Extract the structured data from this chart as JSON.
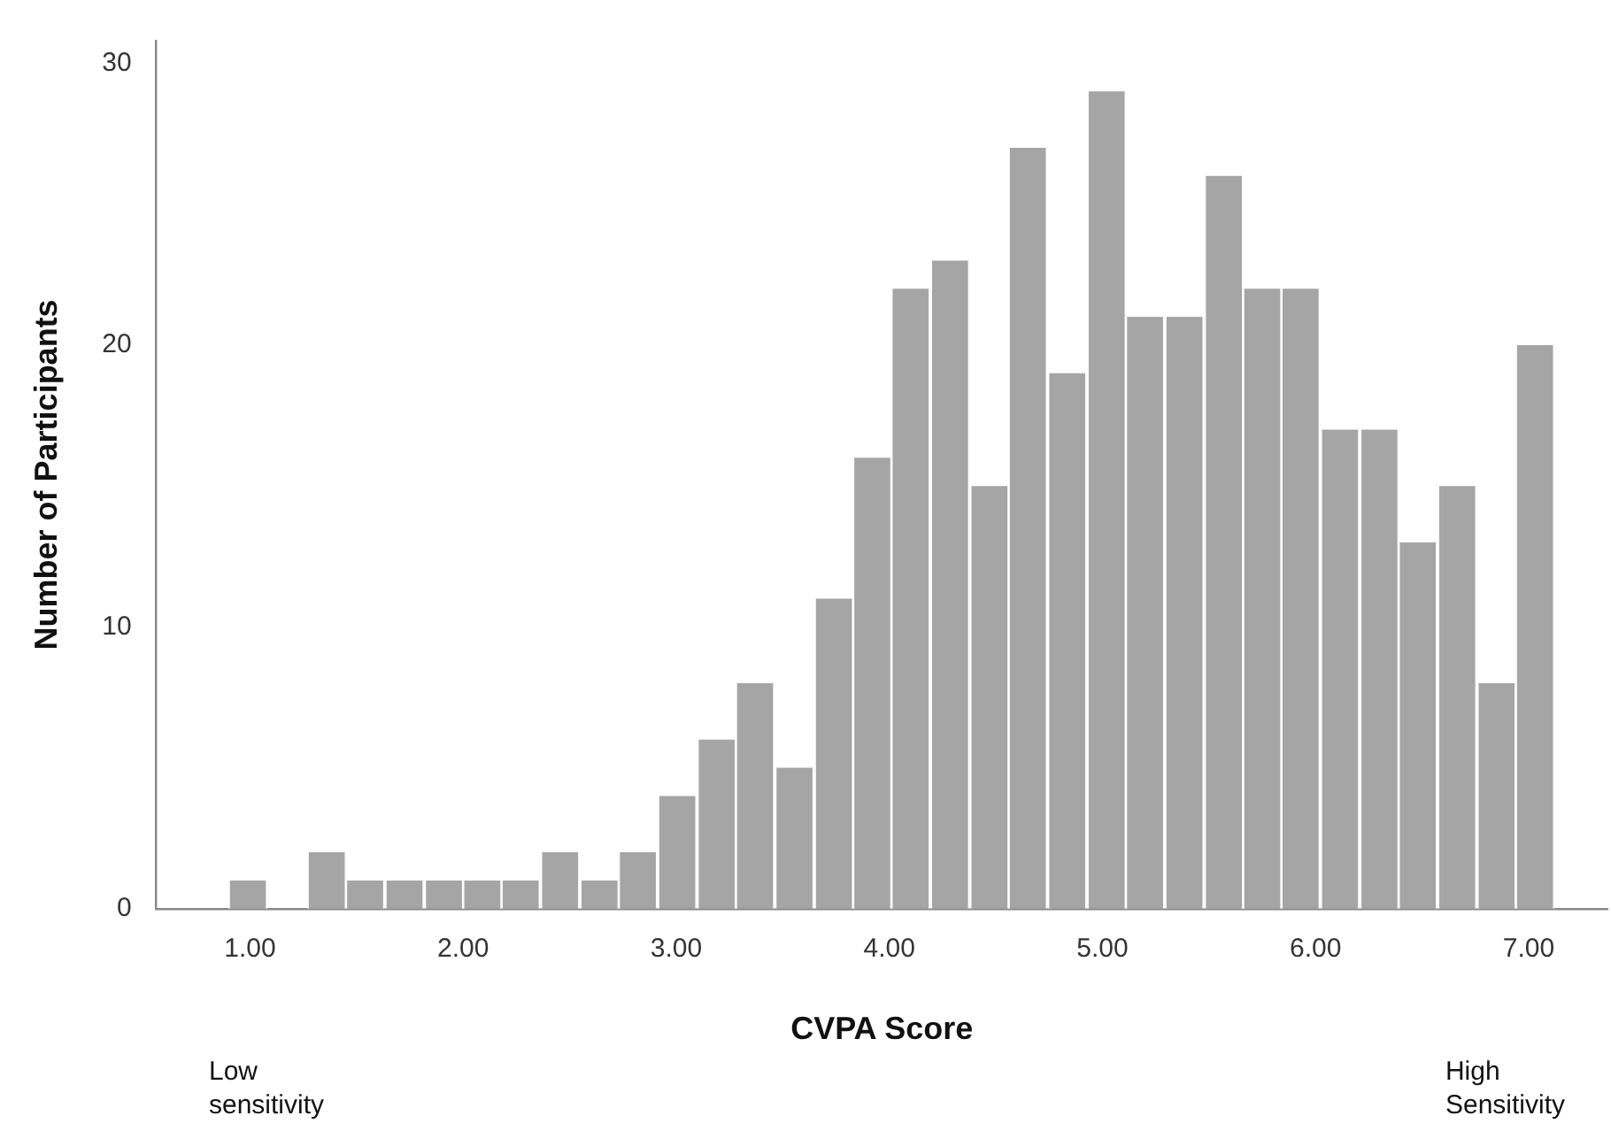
{
  "chart_data": {
    "type": "histogram",
    "xlabel": "CVPA Score",
    "ylabel": "Number of Participants",
    "bins": [
      0.9,
      1.08,
      1.27,
      1.45,
      1.63,
      1.82,
      2.0,
      2.18,
      2.36,
      2.55,
      2.73,
      2.91,
      3.1,
      3.28,
      3.46,
      3.65,
      3.83,
      4.01,
      4.19,
      4.38,
      4.56,
      4.74,
      4.93,
      5.11,
      5.29,
      5.48,
      5.66,
      5.84,
      6.02,
      6.21,
      6.39,
      6.57,
      6.76,
      6.94,
      7.12
    ],
    "values": [
      1,
      0,
      2,
      1,
      1,
      1,
      1,
      1,
      2,
      1,
      2,
      4,
      6,
      8,
      5,
      11,
      16,
      22,
      23,
      15,
      27,
      19,
      29,
      21,
      21,
      26,
      22,
      22,
      17,
      17,
      13,
      15,
      8,
      20
    ],
    "color": "#a5a5a5",
    "xlim": [
      0.56,
      7.37
    ],
    "xticks": [
      {
        "value": 1,
        "label": "1.00"
      },
      {
        "value": 2,
        "label": "2.00"
      },
      {
        "value": 3,
        "label": "3.00"
      },
      {
        "value": 4,
        "label": "4.00"
      },
      {
        "value": 5,
        "label": "5.00"
      },
      {
        "value": 6,
        "label": "6.00"
      },
      {
        "value": 7,
        "label": "7.00"
      }
    ],
    "ylim": [
      0,
      30.8
    ],
    "yticks": [
      0,
      10,
      20,
      30
    ],
    "grid": false,
    "legend": false,
    "annotations": [
      "Low\nsensitivity",
      "High\nSensitivity"
    ]
  }
}
